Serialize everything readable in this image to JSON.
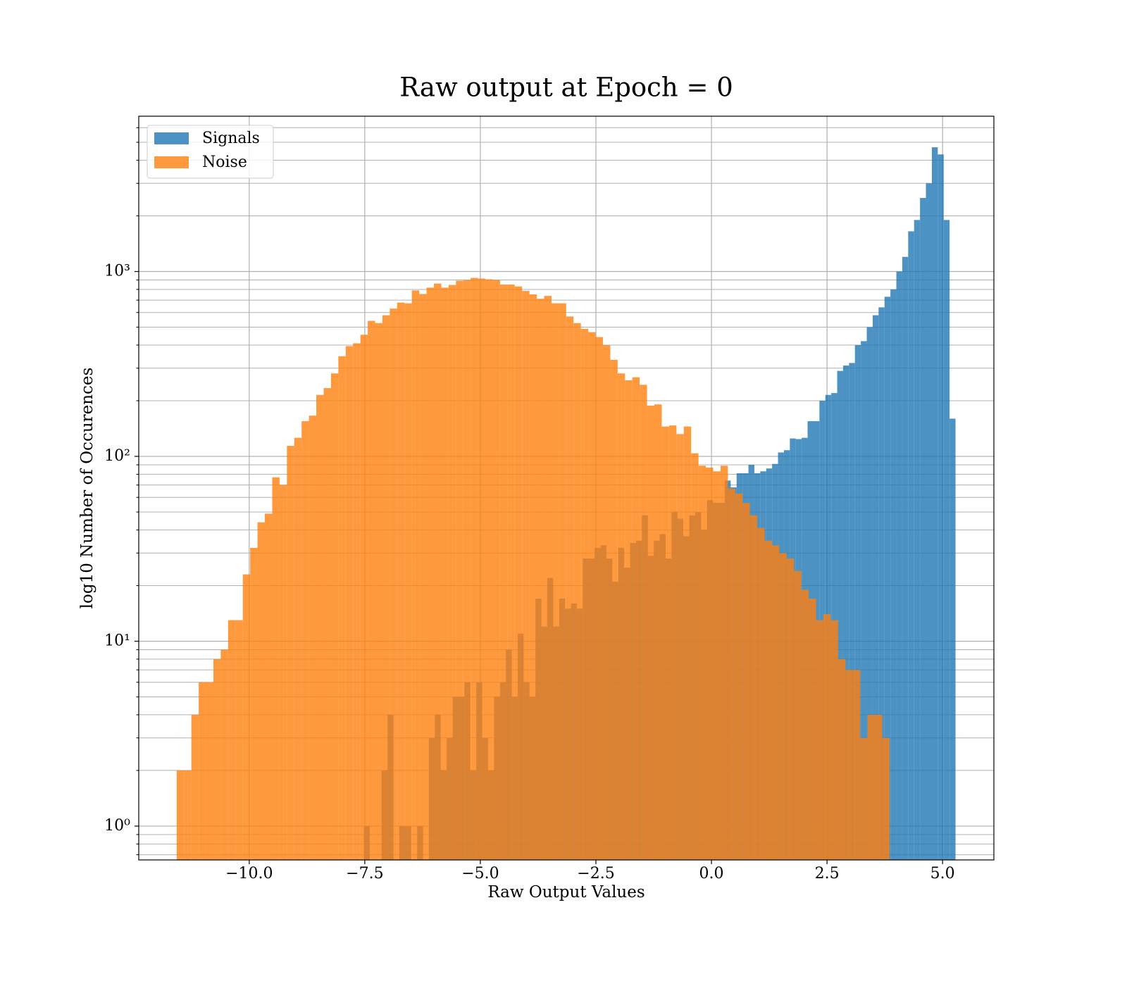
{
  "chart_data": {
    "type": "histogram",
    "title": "Raw output at Epoch = 0",
    "xlabel": "Raw Output Values",
    "ylabel": "log10 Number of Occurences",
    "xlim": [
      -12.39,
      6.11
    ],
    "ylim": [
      0.656,
      6920
    ],
    "log_y": true,
    "grid": true,
    "legend": "upper left",
    "alpha": 0.8,
    "xticks": [
      {
        "value": -10,
        "label": "−10.0"
      },
      {
        "value": -7.5,
        "label": "−7.5"
      },
      {
        "value": -5,
        "label": "−5.0"
      },
      {
        "value": -2.5,
        "label": "−2.5"
      },
      {
        "value": 0,
        "label": "0.0"
      },
      {
        "value": 2.5,
        "label": "2.5"
      },
      {
        "value": 5,
        "label": "5.0"
      }
    ],
    "yticks": [
      {
        "value": 1,
        "label": "10⁰"
      },
      {
        "value": 10,
        "label": "10¹"
      },
      {
        "value": 100,
        "label": "10²"
      },
      {
        "value": 1000,
        "label": "10³"
      }
    ],
    "yminorticks": [
      0.7,
      0.8,
      0.9,
      2,
      3,
      4,
      5,
      6,
      7,
      8,
      9,
      20,
      30,
      40,
      50,
      60,
      70,
      80,
      90,
      200,
      300,
      400,
      500,
      600,
      700,
      800,
      900,
      2000,
      3000,
      4000,
      5000,
      6000
    ],
    "series": [
      {
        "name": "Signals",
        "color": "#1f77b4",
        "bins": [
          -7.52,
          -7.392,
          -7.264,
          -7.136,
          -7.008,
          -6.88,
          -6.752,
          -6.624,
          -6.496,
          -6.368,
          -6.24,
          -6.112,
          -5.984,
          -5.856,
          -5.728,
          -5.6,
          -5.472,
          -5.344,
          -5.216,
          -5.088,
          -4.96,
          -4.832,
          -4.704,
          -4.576,
          -4.448,
          -4.32,
          -4.192,
          -4.064,
          -3.936,
          -3.808,
          -3.68,
          -3.552,
          -3.424,
          -3.296,
          -3.168,
          -3.04,
          -2.912,
          -2.784,
          -2.656,
          -2.528,
          -2.4,
          -2.272,
          -2.144,
          -2.016,
          -1.888,
          -1.76,
          -1.632,
          -1.504,
          -1.376,
          -1.248,
          -1.12,
          -0.992,
          -0.864,
          -0.736,
          -0.608,
          -0.48,
          -0.352,
          -0.224,
          -0.096,
          0.032,
          0.16,
          0.288,
          0.416,
          0.544,
          0.672,
          0.8,
          0.928,
          1.056,
          1.184,
          1.312,
          1.44,
          1.568,
          1.696,
          1.824,
          1.952,
          2.08,
          2.208,
          2.336,
          2.464,
          2.592,
          2.72,
          2.848,
          2.976,
          3.104,
          3.232,
          3.36,
          3.488,
          3.616,
          3.744,
          3.872,
          4.0,
          4.128,
          4.256,
          4.384,
          4.512,
          4.64,
          4.768,
          4.896,
          5.024,
          5.152,
          5.28
        ],
        "values": [
          1,
          0,
          0,
          2,
          4,
          0,
          1,
          1,
          0,
          1,
          0,
          3,
          4,
          2,
          3,
          5,
          5,
          6,
          2,
          6,
          3,
          2,
          5,
          6,
          9,
          5,
          11,
          6,
          5,
          17,
          12,
          22,
          12,
          17,
          15,
          16,
          15,
          28,
          28,
          32,
          33,
          28,
          21,
          32,
          25,
          34,
          35,
          48,
          29,
          35,
          38,
          28,
          50,
          46,
          37,
          48,
          50,
          40,
          58,
          56,
          56,
          74,
          68,
          81,
          81,
          90,
          81,
          83,
          86,
          91,
          105,
          108,
          125,
          124,
          126,
          155,
          155,
          200,
          215,
          220,
          290,
          310,
          320,
          400,
          420,
          500,
          580,
          640,
          730,
          800,
          1000,
          1200,
          1650,
          1900,
          2500,
          3000,
          4700,
          4300,
          1900,
          160
        ]
      },
      {
        "name": "Noise",
        "color": "#ff7f0e",
        "bins": [
          -11.57,
          -11.411,
          -11.252,
          -11.093,
          -10.934,
          -10.775,
          -10.616,
          -10.457,
          -10.298,
          -10.139,
          -9.98,
          -9.821,
          -9.662,
          -9.503,
          -9.344,
          -9.185,
          -9.026,
          -8.867,
          -8.708,
          -8.549,
          -8.39,
          -8.231,
          -8.072,
          -7.913,
          -7.754,
          -7.595,
          -7.436,
          -7.277,
          -7.118,
          -6.959,
          -6.8,
          -6.641,
          -6.482,
          -6.323,
          -6.164,
          -6.005,
          -5.846,
          -5.687,
          -5.528,
          -5.369,
          -5.21,
          -5.051,
          -4.892,
          -4.733,
          -4.574,
          -4.415,
          -4.256,
          -4.097,
          -3.938,
          -3.779,
          -3.62,
          -3.461,
          -3.302,
          -3.143,
          -2.984,
          -2.825,
          -2.666,
          -2.507,
          -2.348,
          -2.189,
          -2.03,
          -1.871,
          -1.712,
          -1.553,
          -1.394,
          -1.235,
          -1.076,
          -0.917,
          -0.758,
          -0.599,
          -0.44,
          -0.281,
          -0.122,
          0.037,
          0.196,
          0.355,
          0.514,
          0.673,
          0.832,
          0.991,
          1.15,
          1.309,
          1.468,
          1.627,
          1.786,
          1.945,
          2.104,
          2.263,
          2.422,
          2.581,
          2.74,
          2.899,
          3.058,
          3.217,
          3.376,
          3.535,
          3.694,
          3.853
        ],
        "values": [
          2,
          2,
          4,
          6,
          6,
          8,
          9,
          13,
          13,
          23,
          32,
          44,
          49,
          77,
          70,
          114,
          126,
          155,
          166,
          215,
          234,
          281,
          348,
          395,
          409,
          455,
          541,
          526,
          580,
          630,
          679,
          673,
          790,
          756,
          818,
          861,
          818,
          846,
          892,
          900,
          924,
          916,
          908,
          900,
          850,
          850,
          830,
          785,
          752,
          712,
          738,
          673,
          673,
          571,
          526,
          490,
          470,
          442,
          400,
          333,
          281,
          258,
          268,
          244,
          188,
          191,
          145,
          147,
          132,
          145,
          104,
          89,
          87,
          83,
          89,
          67,
          63,
          56,
          48,
          41,
          35,
          33,
          30,
          28,
          24,
          19,
          17,
          13,
          14,
          13,
          8,
          7,
          7,
          3,
          4,
          4,
          3
        ]
      }
    ]
  }
}
